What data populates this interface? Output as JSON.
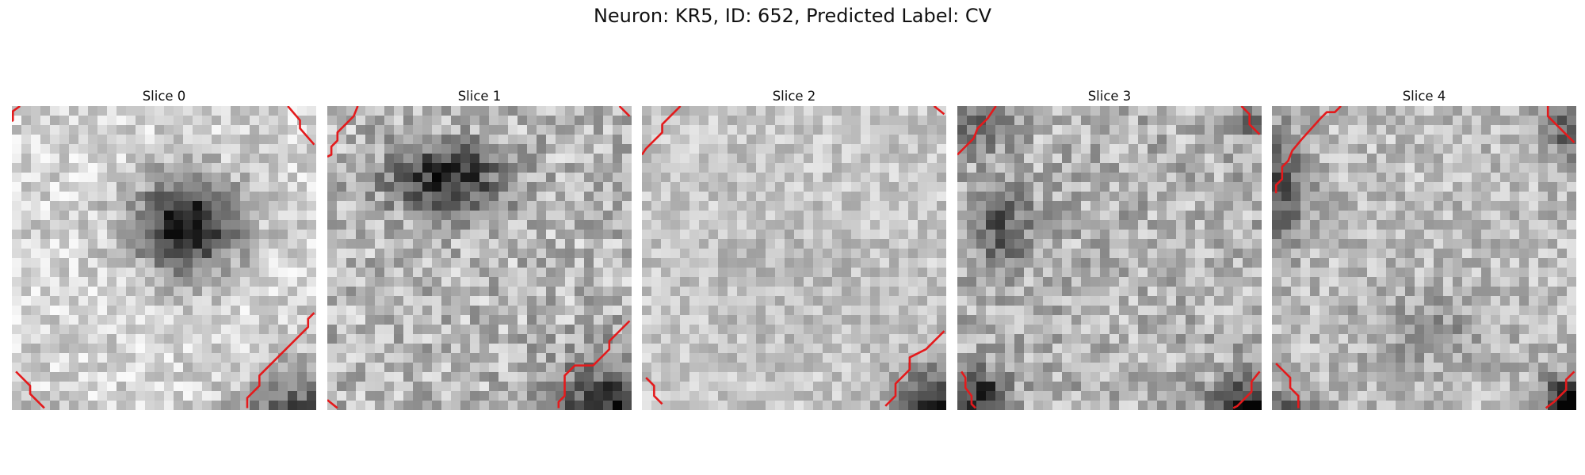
{
  "title": "Neuron: KR5, ID: 652, Predicted Label: CV",
  "slices": [
    {
      "label": "Slice 0"
    },
    {
      "label": "Slice 1"
    },
    {
      "label": "Slice 2"
    },
    {
      "label": "Slice 3"
    },
    {
      "label": "Slice 4"
    }
  ],
  "colors": {
    "contour": "#e41a1c"
  }
}
